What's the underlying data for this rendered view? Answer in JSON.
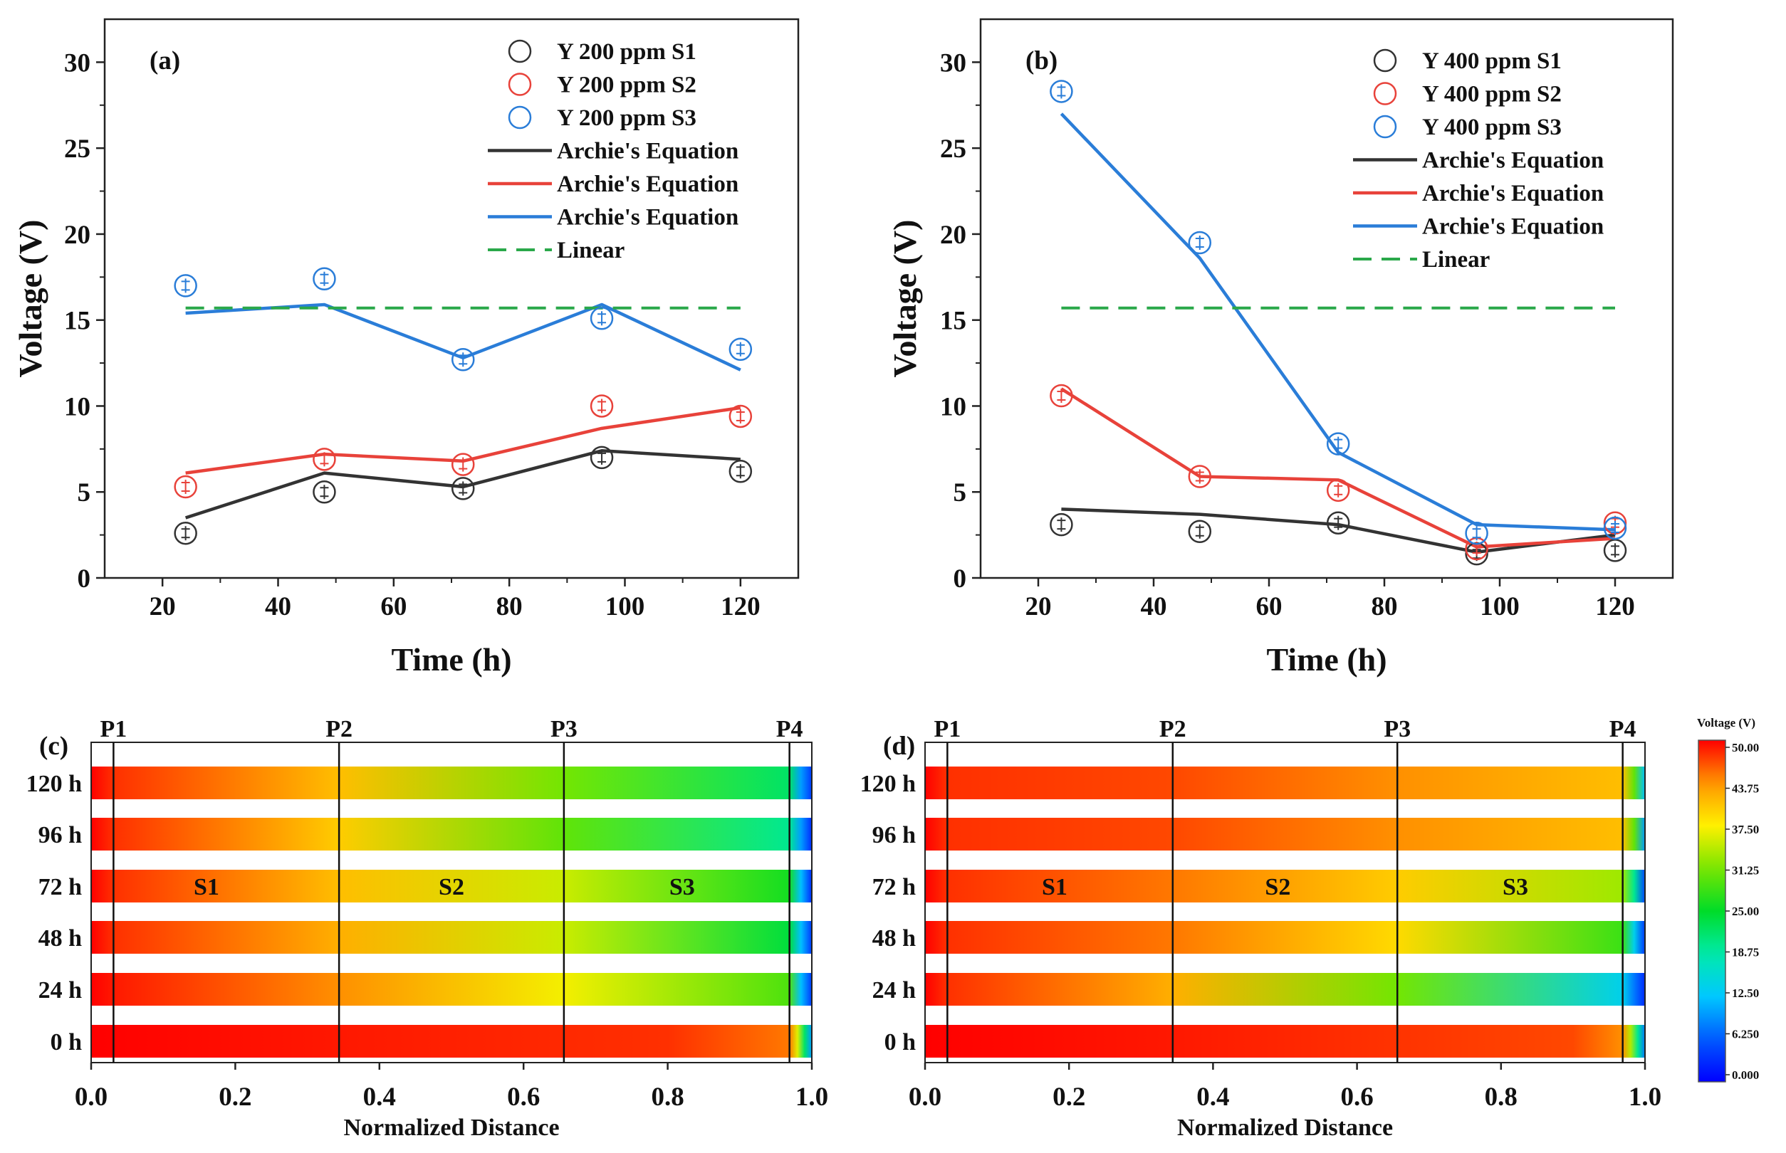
{
  "chart_data": [
    {
      "panel": "(a)",
      "type": "line",
      "xlabel": "Time (h)",
      "ylabel": "Voltage (V)",
      "xlim": [
        10,
        130
      ],
      "ylim": [
        0,
        32.5
      ],
      "xticks": [
        20,
        40,
        60,
        80,
        100,
        120
      ],
      "yticks": [
        0,
        5,
        10,
        15,
        20,
        25,
        30
      ],
      "x": [
        24,
        48,
        72,
        96,
        120
      ],
      "series": [
        {
          "name": "Y 200 ppm S1",
          "kind": "scatter",
          "color": "#333333",
          "values": [
            2.6,
            5.0,
            5.2,
            7.0,
            6.2
          ]
        },
        {
          "name": "Y 200 ppm S2",
          "kind": "scatter",
          "color": "#e8423a",
          "values": [
            5.3,
            6.9,
            6.6,
            10.0,
            9.4
          ]
        },
        {
          "name": "Y 200 ppm S3",
          "kind": "scatter",
          "color": "#2a7dd8",
          "values": [
            17.0,
            17.4,
            12.7,
            15.1,
            13.3
          ]
        },
        {
          "name": "Archie's Equation",
          "kind": "line",
          "color": "#333333",
          "values": [
            3.5,
            6.1,
            5.3,
            7.4,
            6.9
          ]
        },
        {
          "name": "Archie's Equation",
          "kind": "line",
          "color": "#e8423a",
          "values": [
            6.1,
            7.2,
            6.8,
            8.7,
            9.9
          ]
        },
        {
          "name": "Archie's Equation",
          "kind": "line",
          "color": "#2a7dd8",
          "values": [
            15.4,
            15.9,
            12.8,
            15.9,
            12.1
          ]
        },
        {
          "name": "Linear",
          "kind": "dashed",
          "color": "#2aa84a",
          "values": [
            15.7,
            15.7,
            15.7,
            15.7,
            15.7
          ]
        }
      ]
    },
    {
      "panel": "(b)",
      "type": "line",
      "xlabel": "Time (h)",
      "ylabel": "Voltage (V)",
      "xlim": [
        10,
        130
      ],
      "ylim": [
        0,
        32.5
      ],
      "xticks": [
        20,
        40,
        60,
        80,
        100,
        120
      ],
      "yticks": [
        0,
        5,
        10,
        15,
        20,
        25,
        30
      ],
      "x": [
        24,
        48,
        72,
        96,
        120
      ],
      "series": [
        {
          "name": "Y 400 ppm S1",
          "kind": "scatter",
          "color": "#333333",
          "values": [
            3.1,
            2.7,
            3.2,
            1.4,
            1.6
          ]
        },
        {
          "name": "Y 400 ppm S2",
          "kind": "scatter",
          "color": "#e8423a",
          "values": [
            10.6,
            5.9,
            5.1,
            1.7,
            3.2
          ]
        },
        {
          "name": "Y 400 ppm S3",
          "kind": "scatter",
          "color": "#2a7dd8",
          "values": [
            28.3,
            19.5,
            7.8,
            2.6,
            2.9
          ]
        },
        {
          "name": "Archie's Equation",
          "kind": "line",
          "color": "#333333",
          "values": [
            4.0,
            3.7,
            3.1,
            1.5,
            2.5
          ]
        },
        {
          "name": "Archie's Equation",
          "kind": "line",
          "color": "#e8423a",
          "values": [
            11.0,
            5.9,
            5.7,
            1.8,
            2.3
          ]
        },
        {
          "name": "Archie's Equation",
          "kind": "line",
          "color": "#2a7dd8",
          "values": [
            27.0,
            18.6,
            7.3,
            3.1,
            2.8
          ]
        },
        {
          "name": "Linear",
          "kind": "dashed",
          "color": "#2aa84a",
          "values": [
            15.7,
            15.7,
            15.7,
            15.7,
            15.7
          ]
        }
      ]
    },
    {
      "panel": "(c)",
      "type": "heatmap",
      "xlabel": "Normalized Distance",
      "xlim": [
        0,
        1
      ],
      "xticks": [
        "0.0",
        "0.2",
        "0.4",
        "0.6",
        "0.8",
        "1.0"
      ],
      "rows": [
        "120 h",
        "96 h",
        "72 h",
        "48 h",
        "24 h",
        "0 h"
      ],
      "probes": [
        {
          "label": "P1",
          "x": 0.031
        },
        {
          "label": "P2",
          "x": 0.344
        },
        {
          "label": "P3",
          "x": 0.656
        },
        {
          "label": "P4",
          "x": 0.969
        }
      ],
      "segments": [
        {
          "label": "S1",
          "x": 0.16
        },
        {
          "label": "S2",
          "x": 0.5
        },
        {
          "label": "S3",
          "x": 0.82
        }
      ],
      "segment_row": "72 h",
      "profiles": [
        [
          [
            0,
            50
          ],
          [
            0.031,
            48
          ],
          [
            0.344,
            41
          ],
          [
            0.656,
            31
          ],
          [
            0.969,
            22
          ],
          [
            0.985,
            10
          ],
          [
            1,
            4
          ]
        ],
        [
          [
            0,
            50
          ],
          [
            0.031,
            48
          ],
          [
            0.344,
            40
          ],
          [
            0.656,
            30
          ],
          [
            0.969,
            20
          ],
          [
            0.985,
            10
          ],
          [
            1,
            3
          ]
        ],
        [
          [
            0,
            50
          ],
          [
            0.031,
            48
          ],
          [
            0.344,
            41
          ],
          [
            0.656,
            35
          ],
          [
            0.969,
            26
          ],
          [
            0.985,
            12
          ],
          [
            1,
            3
          ]
        ],
        [
          [
            0,
            50
          ],
          [
            0.031,
            48
          ],
          [
            0.344,
            42
          ],
          [
            0.656,
            35
          ],
          [
            0.969,
            24
          ],
          [
            0.985,
            12
          ],
          [
            1,
            4
          ]
        ],
        [
          [
            0,
            50
          ],
          [
            0.031,
            49
          ],
          [
            0.344,
            44
          ],
          [
            0.656,
            37
          ],
          [
            0.969,
            29
          ],
          [
            0.985,
            12
          ],
          [
            1,
            4
          ]
        ],
        [
          [
            0,
            50
          ],
          [
            0.344,
            49
          ],
          [
            0.8,
            48
          ],
          [
            0.969,
            45
          ],
          [
            0.98,
            36
          ],
          [
            0.99,
            22
          ],
          [
            1,
            10
          ]
        ]
      ]
    },
    {
      "panel": "(d)",
      "type": "heatmap",
      "xlabel": "Normalized Distance",
      "xlim": [
        0,
        1
      ],
      "xticks": [
        "0.0",
        "0.2",
        "0.4",
        "0.6",
        "0.8",
        "1.0"
      ],
      "rows": [
        "120 h",
        "96 h",
        "72 h",
        "48 h",
        "24 h",
        "0 h"
      ],
      "probes": [
        {
          "label": "P1",
          "x": 0.031
        },
        {
          "label": "P2",
          "x": 0.344
        },
        {
          "label": "P3",
          "x": 0.656
        },
        {
          "label": "P4",
          "x": 0.969
        }
      ],
      "segments": [
        {
          "label": "S1",
          "x": 0.18
        },
        {
          "label": "S2",
          "x": 0.49
        },
        {
          "label": "S3",
          "x": 0.82
        }
      ],
      "segment_row": "72 h",
      "profiles": [
        [
          [
            0,
            50
          ],
          [
            0.031,
            48
          ],
          [
            0.344,
            47
          ],
          [
            0.656,
            44
          ],
          [
            0.969,
            41
          ],
          [
            0.985,
            30
          ],
          [
            1,
            12
          ]
        ],
        [
          [
            0,
            50
          ],
          [
            0.031,
            48
          ],
          [
            0.344,
            47
          ],
          [
            0.656,
            44
          ],
          [
            0.969,
            41
          ],
          [
            0.985,
            30
          ],
          [
            1,
            10
          ]
        ],
        [
          [
            0,
            50
          ],
          [
            0.031,
            48
          ],
          [
            0.344,
            45
          ],
          [
            0.656,
            40
          ],
          [
            0.969,
            33
          ],
          [
            0.985,
            20
          ],
          [
            1,
            5
          ]
        ],
        [
          [
            0,
            50
          ],
          [
            0.031,
            48
          ],
          [
            0.344,
            45
          ],
          [
            0.656,
            39
          ],
          [
            0.969,
            28
          ],
          [
            0.985,
            14
          ],
          [
            1,
            4
          ]
        ],
        [
          [
            0,
            50
          ],
          [
            0.031,
            48
          ],
          [
            0.344,
            42
          ],
          [
            0.656,
            31
          ],
          [
            0.969,
            14
          ],
          [
            0.985,
            8
          ],
          [
            1,
            3
          ]
        ],
        [
          [
            0,
            50
          ],
          [
            0.344,
            49
          ],
          [
            0.9,
            47
          ],
          [
            0.969,
            44
          ],
          [
            0.98,
            34
          ],
          [
            0.99,
            20
          ],
          [
            1,
            8
          ]
        ]
      ]
    }
  ],
  "colorbar": {
    "title": "Voltage (V)",
    "range": [
      0,
      50
    ],
    "ticks": [
      "50.00",
      "43.75",
      "37.50",
      "31.25",
      "25.00",
      "18.75",
      "12.50",
      "6.250",
      "0.000"
    ]
  }
}
